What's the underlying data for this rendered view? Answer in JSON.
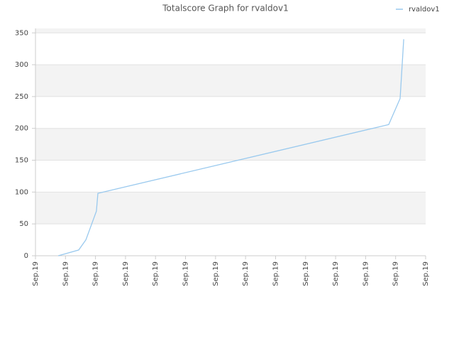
{
  "chart_data": {
    "type": "line",
    "title": "Totalscore Graph for rvaldov1",
    "x": [
      0.76,
      1.44,
      1.68,
      2.03,
      2.08,
      11.77,
      12.15,
      12.27
    ],
    "series": [
      {
        "name": "rvaldov1",
        "color": "#99c9ee",
        "values": [
          0,
          9,
          25,
          70,
          98,
          206,
          247,
          340
        ]
      }
    ],
    "xlim": [
      0,
      13
    ],
    "xticks": [
      {
        "value": 0,
        "label": "Sep.19"
      },
      {
        "value": 1,
        "label": "Sep.19"
      },
      {
        "value": 2,
        "label": "Sep.19"
      },
      {
        "value": 3,
        "label": "Sep.19"
      },
      {
        "value": 4,
        "label": "Sep.19"
      },
      {
        "value": 5,
        "label": "Sep.19"
      },
      {
        "value": 6,
        "label": "Sep.19"
      },
      {
        "value": 7,
        "label": "Sep.19"
      },
      {
        "value": 8,
        "label": "Sep.19"
      },
      {
        "value": 9,
        "label": "Sep.19"
      },
      {
        "value": 10,
        "label": "Sep.19"
      },
      {
        "value": 11,
        "label": "Sep.19"
      },
      {
        "value": 12,
        "label": "Sep.19"
      },
      {
        "value": 13,
        "label": "Sep.19"
      }
    ],
    "ylim": [
      0,
      357
    ],
    "yticks": [
      0,
      50,
      100,
      150,
      200,
      250,
      300,
      350
    ],
    "grid": true,
    "legend": "top-right"
  }
}
